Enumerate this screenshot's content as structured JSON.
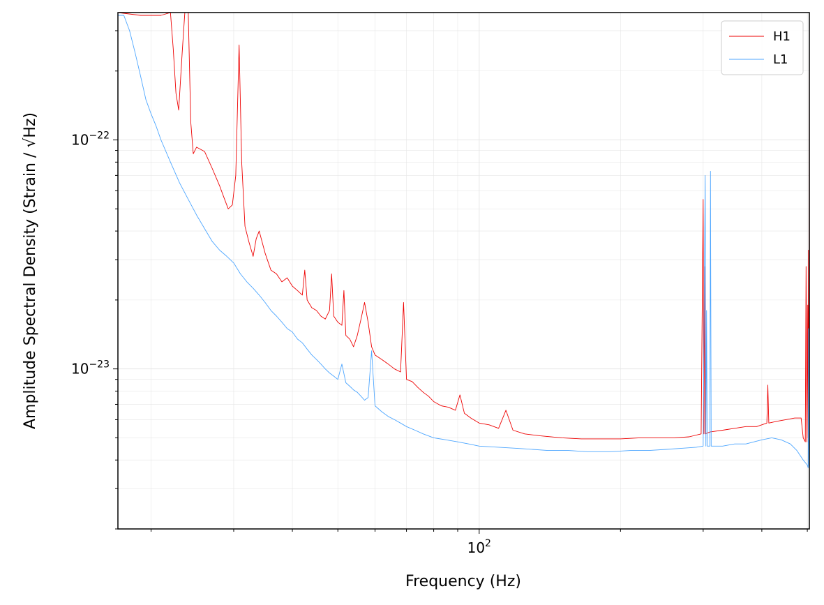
{
  "chart_data": {
    "type": "line",
    "title": "",
    "xlabel": "Frequency (Hz)",
    "ylabel": "Amplitude Spectral Density (Strain / √Hz)",
    "xscale": "log",
    "yscale": "log",
    "xlim": [
      17,
      505
    ],
    "ylim": [
      2e-24,
      3.6e-22
    ],
    "grid": true,
    "legend_position": "top-right",
    "x_major_ticks": [
      {
        "value": 100,
        "base": "10",
        "exp": "2"
      }
    ],
    "y_major_ticks": [
      {
        "value": 1e-22,
        "base": "10",
        "exp": "−22"
      },
      {
        "value": 1e-23,
        "base": "10",
        "exp": "−23"
      }
    ],
    "series": [
      {
        "name": "H1",
        "color": "#ee0000",
        "points": [
          [
            17,
            3.6e-22
          ],
          [
            19,
            3.5e-22
          ],
          [
            21,
            3.5e-22
          ],
          [
            22.0,
            3.6e-22
          ],
          [
            22.3,
            2.5e-22
          ],
          [
            22.6,
            1.6e-22
          ],
          [
            22.9,
            1.35e-22
          ],
          [
            23.3,
            2.4e-22
          ],
          [
            23.6,
            3.6e-22
          ],
          [
            24.0,
            3.6e-22
          ],
          [
            24.3,
            1.2e-22
          ],
          [
            24.6,
            8.7e-23
          ],
          [
            25.0,
            9.3e-23
          ],
          [
            26,
            8.9e-23
          ],
          [
            27,
            7.5e-23
          ],
          [
            28,
            6.3e-23
          ],
          [
            28.6,
            5.6e-23
          ],
          [
            29.2,
            5e-23
          ],
          [
            29.8,
            5.2e-23
          ],
          [
            30.3,
            7e-23
          ],
          [
            30.8,
            2.6e-22
          ],
          [
            31.2,
            8e-23
          ],
          [
            31.7,
            4.2e-23
          ],
          [
            32.3,
            3.6e-23
          ],
          [
            33,
            3.1e-23
          ],
          [
            33.5,
            3.7e-23
          ],
          [
            34,
            4e-23
          ],
          [
            35,
            3.2e-23
          ],
          [
            36,
            2.7e-23
          ],
          [
            37,
            2.6e-23
          ],
          [
            38,
            2.4e-23
          ],
          [
            39,
            2.5e-23
          ],
          [
            40,
            2.3e-23
          ],
          [
            41,
            2.2e-23
          ],
          [
            42,
            2.1e-23
          ],
          [
            42.5,
            2.7e-23
          ],
          [
            43,
            2e-23
          ],
          [
            44,
            1.85e-23
          ],
          [
            45,
            1.8e-23
          ],
          [
            46,
            1.7e-23
          ],
          [
            47,
            1.65e-23
          ],
          [
            48,
            1.8e-23
          ],
          [
            48.5,
            2.6e-23
          ],
          [
            49,
            1.7e-23
          ],
          [
            50,
            1.6e-23
          ],
          [
            51,
            1.55e-23
          ],
          [
            51.5,
            2.2e-23
          ],
          [
            52,
            1.4e-23
          ],
          [
            53,
            1.35e-23
          ],
          [
            54,
            1.25e-23
          ],
          [
            55,
            1.4e-23
          ],
          [
            56,
            1.65e-23
          ],
          [
            57,
            1.95e-23
          ],
          [
            58,
            1.6e-23
          ],
          [
            59,
            1.25e-23
          ],
          [
            60,
            1.15e-23
          ],
          [
            62,
            1.1e-23
          ],
          [
            64,
            1.05e-23
          ],
          [
            66,
            1e-23
          ],
          [
            68,
            9.7e-24
          ],
          [
            69,
            1.95e-23
          ],
          [
            70,
            9e-24
          ],
          [
            72,
            8.8e-24
          ],
          [
            74,
            8.3e-24
          ],
          [
            76,
            7.9e-24
          ],
          [
            78,
            7.6e-24
          ],
          [
            80,
            7.2e-24
          ],
          [
            83,
            6.9e-24
          ],
          [
            86,
            6.8e-24
          ],
          [
            89,
            6.6e-24
          ],
          [
            91,
            7.7e-24
          ],
          [
            93,
            6.4e-24
          ],
          [
            96,
            6.1e-24
          ],
          [
            100,
            5.8e-24
          ],
          [
            105,
            5.7e-24
          ],
          [
            110,
            5.5e-24
          ],
          [
            114,
            6.6e-24
          ],
          [
            118,
            5.4e-24
          ],
          [
            125,
            5.2e-24
          ],
          [
            135,
            5.1e-24
          ],
          [
            150,
            5e-24
          ],
          [
            165,
            4.95e-24
          ],
          [
            180,
            4.95e-24
          ],
          [
            200,
            4.95e-24
          ],
          [
            220,
            5e-24
          ],
          [
            240,
            5e-24
          ],
          [
            260,
            5e-24
          ],
          [
            280,
            5.05e-24
          ],
          [
            297,
            5.2e-24
          ],
          [
            300,
            5.5e-23
          ],
          [
            301,
            5.2e-24
          ],
          [
            302,
            2.8e-23
          ],
          [
            303,
            5.2e-24
          ],
          [
            310,
            5.3e-24
          ],
          [
            330,
            5.4e-24
          ],
          [
            350,
            5.5e-24
          ],
          [
            370,
            5.6e-24
          ],
          [
            390,
            5.6e-24
          ],
          [
            410,
            5.8e-24
          ],
          [
            412,
            8.5e-24
          ],
          [
            414,
            5.8e-24
          ],
          [
            430,
            5.9e-24
          ],
          [
            450,
            6e-24
          ],
          [
            470,
            6.1e-24
          ],
          [
            485,
            6.1e-24
          ],
          [
            490,
            5e-24
          ],
          [
            495,
            4.8e-24
          ],
          [
            497,
            2.8e-23
          ],
          [
            499,
            4.8e-24
          ],
          [
            501,
            1.9e-23
          ],
          [
            502,
            5e-24
          ],
          [
            503,
            3.3e-23
          ],
          [
            504,
            6e-24
          ],
          [
            505,
            3.6e-22
          ]
        ]
      },
      {
        "name": "L1",
        "color": "#4da6ff",
        "points": [
          [
            17,
            3.5e-22
          ],
          [
            17.5,
            3.5e-22
          ],
          [
            18,
            3e-22
          ],
          [
            18.5,
            2.4e-22
          ],
          [
            19,
            1.9e-22
          ],
          [
            19.5,
            1.5e-22
          ],
          [
            20,
            1.3e-22
          ],
          [
            20.5,
            1.15e-22
          ],
          [
            21,
            1e-22
          ],
          [
            22,
            8e-23
          ],
          [
            23,
            6.5e-23
          ],
          [
            24,
            5.5e-23
          ],
          [
            25,
            4.7e-23
          ],
          [
            26,
            4.1e-23
          ],
          [
            27,
            3.6e-23
          ],
          [
            28,
            3.3e-23
          ],
          [
            29,
            3.1e-23
          ],
          [
            30,
            2.9e-23
          ],
          [
            31,
            2.6e-23
          ],
          [
            32,
            2.4e-23
          ],
          [
            33,
            2.25e-23
          ],
          [
            34,
            2.1e-23
          ],
          [
            35,
            1.95e-23
          ],
          [
            36,
            1.8e-23
          ],
          [
            37,
            1.7e-23
          ],
          [
            38,
            1.6e-23
          ],
          [
            39,
            1.5e-23
          ],
          [
            40,
            1.45e-23
          ],
          [
            41,
            1.35e-23
          ],
          [
            42,
            1.3e-23
          ],
          [
            43,
            1.22e-23
          ],
          [
            44,
            1.15e-23
          ],
          [
            45,
            1.1e-23
          ],
          [
            46,
            1.05e-23
          ],
          [
            47,
            1e-23
          ],
          [
            48,
            9.6e-24
          ],
          [
            49,
            9.3e-24
          ],
          [
            50,
            9e-24
          ],
          [
            51,
            1.05e-23
          ],
          [
            52,
            8.7e-24
          ],
          [
            53,
            8.4e-24
          ],
          [
            54,
            8.1e-24
          ],
          [
            55,
            7.9e-24
          ],
          [
            56,
            7.6e-24
          ],
          [
            57,
            7.3e-24
          ],
          [
            58,
            7.5e-24
          ],
          [
            59,
            1.2e-23
          ],
          [
            60,
            6.9e-24
          ],
          [
            62,
            6.5e-24
          ],
          [
            64,
            6.2e-24
          ],
          [
            66,
            6e-24
          ],
          [
            68,
            5.8e-24
          ],
          [
            70,
            5.6e-24
          ],
          [
            73,
            5.4e-24
          ],
          [
            76,
            5.2e-24
          ],
          [
            80,
            5e-24
          ],
          [
            85,
            4.9e-24
          ],
          [
            90,
            4.8e-24
          ],
          [
            95,
            4.7e-24
          ],
          [
            100,
            4.6e-24
          ],
          [
            110,
            4.55e-24
          ],
          [
            120,
            4.5e-24
          ],
          [
            130,
            4.45e-24
          ],
          [
            140,
            4.4e-24
          ],
          [
            155,
            4.4e-24
          ],
          [
            170,
            4.35e-24
          ],
          [
            190,
            4.35e-24
          ],
          [
            210,
            4.4e-24
          ],
          [
            230,
            4.4e-24
          ],
          [
            250,
            4.45e-24
          ],
          [
            270,
            4.5e-24
          ],
          [
            290,
            4.55e-24
          ],
          [
            300,
            4.6e-24
          ],
          [
            303,
            7e-23
          ],
          [
            304,
            4.6e-24
          ],
          [
            305,
            1.8e-23
          ],
          [
            306,
            4.6e-24
          ],
          [
            310,
            4.6e-24
          ],
          [
            311,
            7.3e-23
          ],
          [
            312,
            4.6e-24
          ],
          [
            330,
            4.6e-24
          ],
          [
            350,
            4.7e-24
          ],
          [
            370,
            4.7e-24
          ],
          [
            385,
            4.8e-24
          ],
          [
            400,
            4.9e-24
          ],
          [
            420,
            5e-24
          ],
          [
            440,
            4.9e-24
          ],
          [
            460,
            4.7e-24
          ],
          [
            475,
            4.4e-24
          ],
          [
            490,
            4e-24
          ],
          [
            500,
            3.8e-24
          ],
          [
            502,
            3.7e-24
          ],
          [
            503,
            1.5e-23
          ],
          [
            504,
            3.8e-24
          ],
          [
            505,
            3.7e-24
          ]
        ]
      }
    ]
  }
}
